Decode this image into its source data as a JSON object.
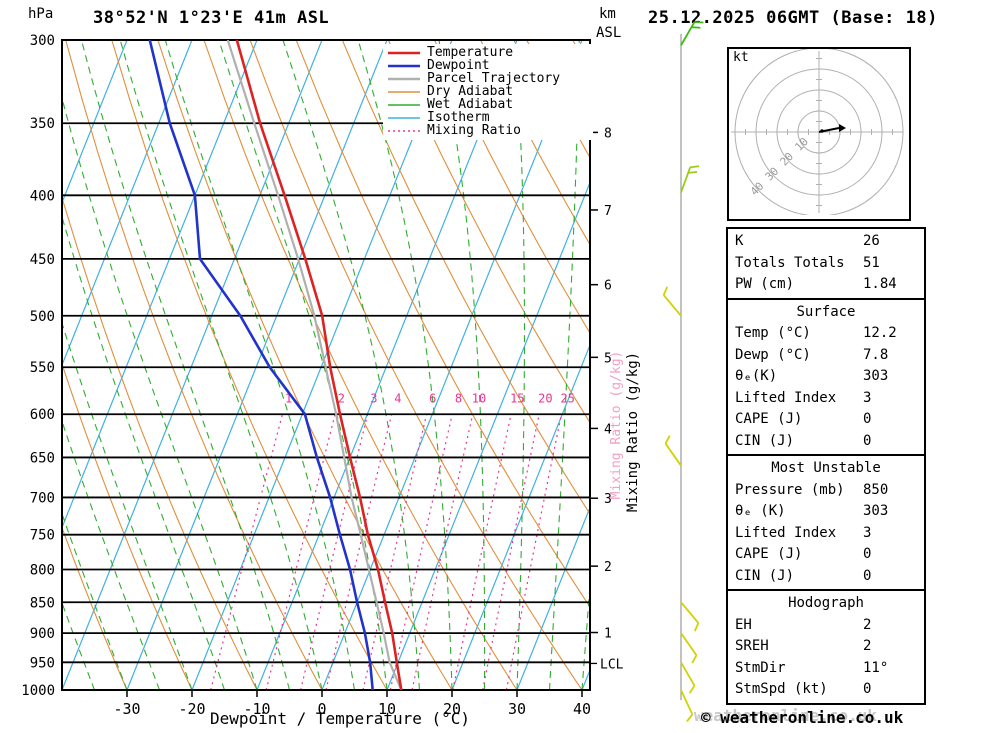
{
  "header": {
    "pressure_unit": "hPa",
    "station": "38°52'N 1°23'E 41m ASL",
    "altitude_unit_km": "km",
    "altitude_unit_asl": "ASL",
    "run": "25.12.2025 06GMT (Base: 18)"
  },
  "legend": {
    "items": [
      {
        "label": "Temperature",
        "color": "#dd2222",
        "style": "solid",
        "width": 2.5
      },
      {
        "label": "Dewpoint",
        "color": "#2233cc",
        "style": "solid",
        "width": 2.5
      },
      {
        "label": "Parcel Trajectory",
        "color": "#b0b0b0",
        "style": "solid",
        "width": 2.5
      },
      {
        "label": "Dry Adiabat",
        "color": "#e08f3c",
        "style": "solid",
        "width": 1.5
      },
      {
        "label": "Wet Adiabat",
        "color": "#2fae2f",
        "style": "solid",
        "width": 1.5
      },
      {
        "label": "Isotherm",
        "color": "#41b0e1",
        "style": "solid",
        "width": 1.5
      },
      {
        "label": "Mixing Ratio",
        "color": "#e8368f",
        "style": "dotted",
        "width": 1.5
      }
    ]
  },
  "axes": {
    "xlabel": "Dewpoint / Temperature (°C)",
    "pressure_ticks": [
      300,
      350,
      400,
      450,
      500,
      550,
      600,
      650,
      700,
      750,
      800,
      850,
      900,
      950,
      1000
    ],
    "temp_ticks": [
      -30,
      -20,
      -10,
      0,
      10,
      20,
      30,
      40
    ],
    "km_ticks": [
      {
        "km": 8,
        "hpa": 356
      },
      {
        "km": 7,
        "hpa": 411
      },
      {
        "km": 6,
        "hpa": 472
      },
      {
        "km": 5,
        "hpa": 540
      },
      {
        "km": 4,
        "hpa": 616
      },
      {
        "km": 3,
        "hpa": 701
      },
      {
        "km": 2,
        "hpa": 795
      },
      {
        "km": 1,
        "hpa": 899
      }
    ],
    "lcl_label": "LCL",
    "mixing_ratio_label": "Mixing Ratio (g/kg)",
    "mixing_ratio_values": [
      1,
      2,
      3,
      4,
      6,
      8,
      10,
      15,
      20,
      25
    ]
  },
  "hodograph": {
    "unit": "kt",
    "rings": [
      10,
      20,
      30,
      40
    ]
  },
  "stats_panel": {
    "sections": [
      {
        "title": "",
        "rows": [
          [
            "K",
            "26"
          ],
          [
            "Totals Totals",
            "51"
          ],
          [
            "PW (cm)",
            "1.84"
          ]
        ]
      },
      {
        "title": "Surface",
        "rows": [
          [
            "Temp (°C)",
            "12.2"
          ],
          [
            "Dewp (°C)",
            "7.8"
          ],
          [
            "θₑ(K)",
            "303"
          ],
          [
            "Lifted Index",
            "3"
          ],
          [
            "CAPE (J)",
            "0"
          ],
          [
            "CIN (J)",
            "0"
          ]
        ]
      },
      {
        "title": "Most Unstable",
        "rows": [
          [
            "Pressure (mb)",
            "850"
          ],
          [
            "θₑ (K)",
            "303"
          ],
          [
            "Lifted Index",
            "3"
          ],
          [
            "CAPE (J)",
            "0"
          ],
          [
            "CIN (J)",
            "0"
          ]
        ]
      },
      {
        "title": "Hodograph",
        "rows": [
          [
            "EH",
            "2"
          ],
          [
            "SREH",
            "2"
          ],
          [
            "StmDir",
            "11°"
          ],
          [
            "StmSpd (kt)",
            "0"
          ]
        ]
      }
    ]
  },
  "wind_barbs": [
    {
      "hpa": 303,
      "rot": 30,
      "ticks": 2,
      "color": "#3dbb14"
    },
    {
      "hpa": 398,
      "rot": 20,
      "ticks": 2,
      "color": "#9ccc1a"
    },
    {
      "hpa": 500,
      "rot": -40,
      "ticks": 1,
      "color": "#d2d200"
    },
    {
      "hpa": 660,
      "rot": -35,
      "ticks": 1,
      "color": "#d2d200"
    },
    {
      "hpa": 850,
      "rot": 140,
      "ticks": 1,
      "color": "#d2d200"
    },
    {
      "hpa": 900,
      "rot": 145,
      "ticks": 1,
      "color": "#d2d200"
    },
    {
      "hpa": 950,
      "rot": 150,
      "ticks": 1,
      "color": "#d2d200"
    },
    {
      "hpa": 1000,
      "rot": 155,
      "ticks": 1,
      "color": "#d2d200"
    }
  ],
  "footer": {
    "watermark": "weatheronline.co.uk",
    "copyright": "© weatheronline.co.uk"
  },
  "chart_data": {
    "type": "line",
    "diagram": "skew-T log-p sounding",
    "title": "38°52'N 1°23'E 41m ASL  25.12.2025 06GMT (Base: 18)",
    "y_axis": {
      "label": "hPa",
      "scale": "log",
      "range_hpa": [
        300,
        1000
      ]
    },
    "x_axis": {
      "label": "Dewpoint / Temperature (°C)",
      "range_c": [
        -40,
        40
      ],
      "note": "isotherms skewed"
    },
    "pressure_hpa": [
      1000,
      950,
      900,
      850,
      800,
      750,
      700,
      650,
      600,
      550,
      500,
      450,
      400,
      350,
      300
    ],
    "series": [
      {
        "name": "Temperature",
        "unit": "°C",
        "color": "#dd2222",
        "values": [
          12.2,
          9.8,
          7.3,
          4.3,
          1.2,
          -2.5,
          -6.0,
          -10.0,
          -14.2,
          -18.6,
          -23.0,
          -29.1,
          -36.2,
          -44.4,
          -53.1
        ]
      },
      {
        "name": "Dewpoint",
        "unit": "°C",
        "color": "#2233cc",
        "values": [
          7.8,
          5.7,
          3.1,
          0.0,
          -3.1,
          -6.8,
          -10.6,
          -15.1,
          -19.6,
          -27.9,
          -35.6,
          -45.3,
          -50.0,
          -58.3,
          -66.5
        ]
      },
      {
        "name": "Parcel Trajectory",
        "unit": "°C",
        "color": "#b0b0b0",
        "values": [
          12.2,
          8.7,
          6.0,
          3.0,
          -0.2,
          -3.6,
          -7.3,
          -10.9,
          -14.8,
          -19.3,
          -24.2,
          -30.2,
          -37.2,
          -45.3,
          -54.5
        ]
      }
    ]
  }
}
